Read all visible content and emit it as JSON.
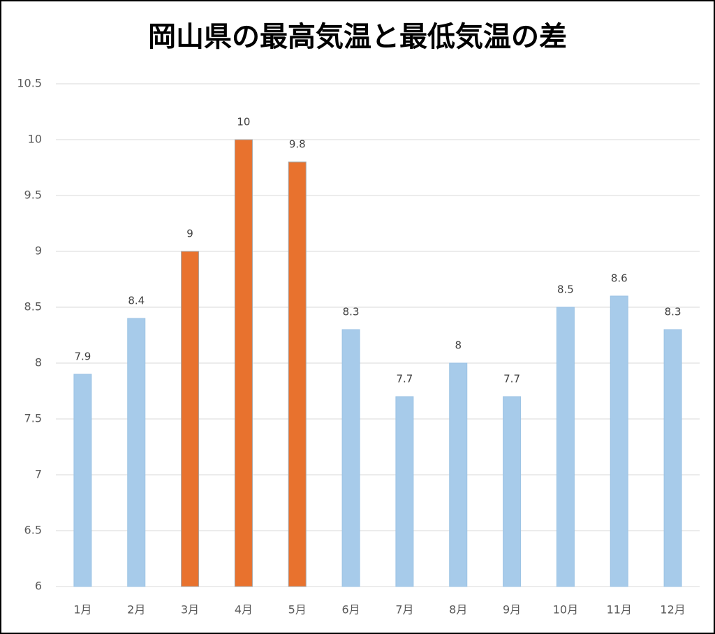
{
  "chart_data": {
    "type": "bar",
    "title": "岡山県の最高気温と最低気温の差",
    "categories": [
      "1月",
      "2月",
      "3月",
      "4月",
      "5月",
      "6月",
      "7月",
      "8月",
      "9月",
      "10月",
      "11月",
      "12月"
    ],
    "values": [
      7.9,
      8.4,
      9,
      10,
      9.8,
      8.3,
      7.7,
      8,
      7.7,
      8.5,
      8.6,
      8.3
    ],
    "colors": [
      "#a7cbea",
      "#a7cbea",
      "#e8722e",
      "#e8722e",
      "#e8722e",
      "#a7cbea",
      "#a7cbea",
      "#a7cbea",
      "#a7cbea",
      "#a7cbea",
      "#a7cbea",
      "#a7cbea"
    ],
    "ylim": [
      6,
      10.5
    ],
    "yticks": [
      6,
      6.5,
      7,
      7.5,
      8,
      8.5,
      9,
      9.5,
      10,
      10.5
    ],
    "grid": true
  }
}
